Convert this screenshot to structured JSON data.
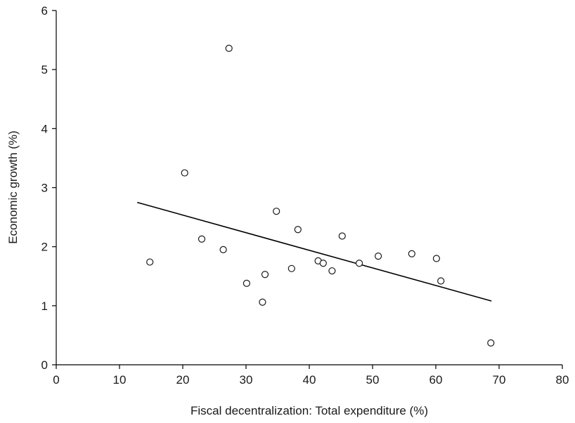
{
  "chart_data": {
    "type": "scatter",
    "title": "",
    "xlabel": "Fiscal decentralization: Total expenditure (%)",
    "ylabel": "Economic growth (%)",
    "xlim": [
      0,
      80
    ],
    "ylim": [
      0,
      6
    ],
    "xticks": [
      0,
      10,
      20,
      30,
      40,
      50,
      60,
      70,
      80
    ],
    "yticks": [
      0,
      1,
      2,
      3,
      4,
      5,
      6
    ],
    "grid": false,
    "legend": "none",
    "marker": "open-circle",
    "points": [
      {
        "x": 14.8,
        "y": 1.74
      },
      {
        "x": 20.3,
        "y": 3.25
      },
      {
        "x": 23.0,
        "y": 2.13
      },
      {
        "x": 26.4,
        "y": 1.95
      },
      {
        "x": 27.3,
        "y": 5.36
      },
      {
        "x": 30.1,
        "y": 1.38
      },
      {
        "x": 32.6,
        "y": 1.06
      },
      {
        "x": 33.0,
        "y": 1.53
      },
      {
        "x": 34.8,
        "y": 2.6
      },
      {
        "x": 37.2,
        "y": 1.63
      },
      {
        "x": 38.2,
        "y": 2.29
      },
      {
        "x": 41.4,
        "y": 1.76
      },
      {
        "x": 42.2,
        "y": 1.72
      },
      {
        "x": 43.6,
        "y": 1.59
      },
      {
        "x": 45.2,
        "y": 2.18
      },
      {
        "x": 47.9,
        "y": 1.72
      },
      {
        "x": 50.9,
        "y": 1.84
      },
      {
        "x": 56.2,
        "y": 1.88
      },
      {
        "x": 60.1,
        "y": 1.8
      },
      {
        "x": 60.8,
        "y": 1.42
      },
      {
        "x": 68.7,
        "y": 0.37
      }
    ],
    "trendline": {
      "type": "linear",
      "x": [
        12.8,
        68.8
      ],
      "y": [
        2.75,
        1.08
      ]
    },
    "colors": {
      "marker_stroke": "#1a1a1a",
      "marker_fill": "#ffffff",
      "line": "#000000"
    }
  }
}
